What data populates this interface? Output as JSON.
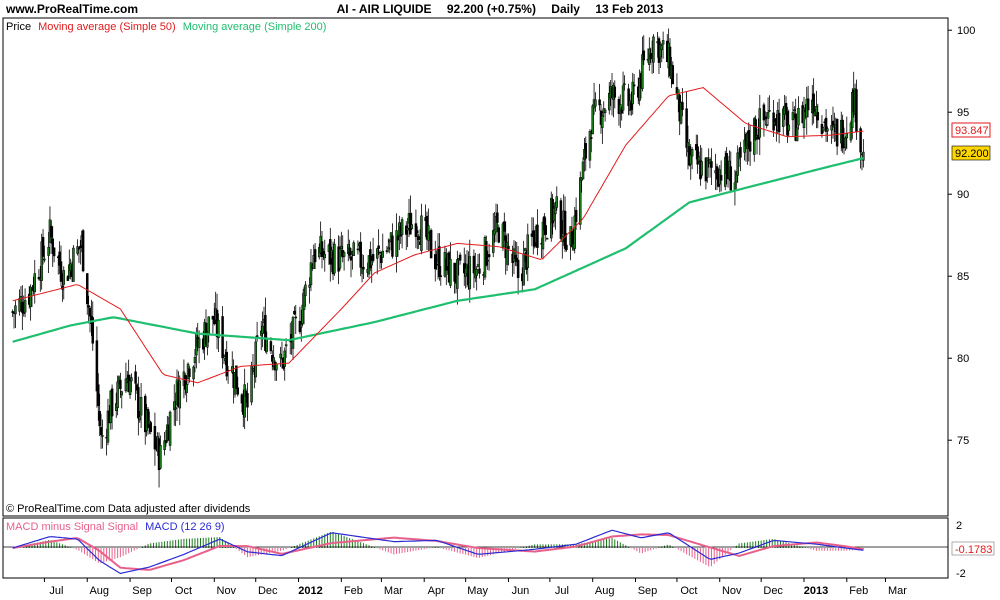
{
  "header": {
    "site": "www.ProRealTime.com",
    "instrument": "AI - AIR LIQUIDE",
    "quote": "92.200 (+0.75%)",
    "period": "Daily",
    "date": "13 Feb 2013"
  },
  "price_panel": {
    "legend_price": "Price",
    "legend_ma50": "Moving average (Simple 50)",
    "legend_ma200": "Moving average (Simple 200)",
    "footer": "© ProRealTime.com  Data adjusted after dividends",
    "last_price_label": "92.200",
    "ma50_label": "93.847"
  },
  "macd_panel": {
    "legend_hist": "MACD minus Signal Signal",
    "legend_macd": "MACD (12 26 9)",
    "value_label": "-0.1783",
    "tick_top": "2",
    "tick_bottom": "-2"
  },
  "colors": {
    "ma50": "#e31a1c",
    "ma200": "#1fbf6f",
    "candle_up": "#1a7a1a",
    "candle_down": "#000000",
    "macd": "#2b2bd6",
    "signal": "#e8608a",
    "last_price_bg": "#ffd700",
    "ma50_label_border": "#e31a1c"
  },
  "chart_data": {
    "type": "line",
    "x_labels": [
      "Jul",
      "Aug",
      "Sep",
      "Oct",
      "Nov",
      "Dec",
      "2012",
      "Feb",
      "Mar",
      "Apr",
      "May",
      "Jun",
      "Jul",
      "Aug",
      "Sep",
      "Oct",
      "Nov",
      "Dec",
      "2013",
      "Feb",
      "Mar"
    ],
    "y_ticks": [
      75,
      80,
      85,
      90,
      95,
      100
    ],
    "ylim": [
      70.5,
      100.5
    ],
    "price_anchors": [
      {
        "date": "2011-06-08",
        "close": 82.8
      },
      {
        "date": "2011-06-20",
        "close": 84.0
      },
      {
        "date": "2011-07-05",
        "close": 87.5
      },
      {
        "date": "2011-07-15",
        "close": 85.0
      },
      {
        "date": "2011-07-28",
        "close": 87.0
      },
      {
        "date": "2011-08-05",
        "close": 81.0
      },
      {
        "date": "2011-08-11",
        "close": 75.0
      },
      {
        "date": "2011-08-18",
        "close": 77.0
      },
      {
        "date": "2011-08-30",
        "close": 79.0
      },
      {
        "date": "2011-09-12",
        "close": 76.0
      },
      {
        "date": "2011-09-23",
        "close": 74.0
      },
      {
        "date": "2011-10-03",
        "close": 77.5
      },
      {
        "date": "2011-10-15",
        "close": 80.0
      },
      {
        "date": "2011-10-31",
        "close": 82.5
      },
      {
        "date": "2011-11-10",
        "close": 80.0
      },
      {
        "date": "2011-11-25",
        "close": 77.0
      },
      {
        "date": "2011-12-05",
        "close": 82.0
      },
      {
        "date": "2011-12-19",
        "close": 79.5
      },
      {
        "date": "2012-01-02",
        "close": 82.5
      },
      {
        "date": "2012-01-12",
        "close": 86.5
      },
      {
        "date": "2012-02-03",
        "close": 86.0
      },
      {
        "date": "2012-02-24",
        "close": 86.0
      },
      {
        "date": "2012-03-09",
        "close": 87.0
      },
      {
        "date": "2012-03-26",
        "close": 88.5
      },
      {
        "date": "2012-04-10",
        "close": 86.0
      },
      {
        "date": "2012-04-25",
        "close": 85.0
      },
      {
        "date": "2012-05-10",
        "close": 85.5
      },
      {
        "date": "2012-05-25",
        "close": 88.0
      },
      {
        "date": "2012-06-08",
        "close": 85.0
      },
      {
        "date": "2012-06-20",
        "close": 87.5
      },
      {
        "date": "2012-07-05",
        "close": 89.0
      },
      {
        "date": "2012-07-16",
        "close": 87.0
      },
      {
        "date": "2012-07-31",
        "close": 94.5
      },
      {
        "date": "2012-08-15",
        "close": 96.0
      },
      {
        "date": "2012-08-29",
        "close": 95.5
      },
      {
        "date": "2012-09-14",
        "close": 99.5
      },
      {
        "date": "2012-09-26",
        "close": 98.0
      },
      {
        "date": "2012-10-10",
        "close": 92.0
      },
      {
        "date": "2012-10-22",
        "close": 91.5
      },
      {
        "date": "2012-11-02",
        "close": 91.5
      },
      {
        "date": "2012-11-12",
        "close": 91.0
      },
      {
        "date": "2012-11-26",
        "close": 94.0
      },
      {
        "date": "2012-12-10",
        "close": 95.0
      },
      {
        "date": "2012-12-24",
        "close": 94.0
      },
      {
        "date": "2013-01-07",
        "close": 96.0
      },
      {
        "date": "2013-01-21",
        "close": 93.5
      },
      {
        "date": "2013-01-31",
        "close": 94.0
      },
      {
        "date": "2013-02-06",
        "close": 96.0
      },
      {
        "date": "2013-02-13",
        "close": 92.2
      }
    ],
    "ma50_anchors": [
      {
        "date": "2011-06-08",
        "value": 83.5
      },
      {
        "date": "2011-07-25",
        "value": 84.5
      },
      {
        "date": "2011-08-25",
        "value": 83.0
      },
      {
        "date": "2011-09-25",
        "value": 79.0
      },
      {
        "date": "2011-10-20",
        "value": 78.5
      },
      {
        "date": "2011-11-20",
        "value": 79.5
      },
      {
        "date": "2011-12-25",
        "value": 79.7
      },
      {
        "date": "2012-02-01",
        "value": 83.0
      },
      {
        "date": "2012-02-25",
        "value": 85.2
      },
      {
        "date": "2012-03-25",
        "value": 86.3
      },
      {
        "date": "2012-04-25",
        "value": 87.0
      },
      {
        "date": "2012-05-25",
        "value": 86.8
      },
      {
        "date": "2012-06-25",
        "value": 86.0
      },
      {
        "date": "2012-07-25",
        "value": 88.5
      },
      {
        "date": "2012-08-25",
        "value": 93.0
      },
      {
        "date": "2012-09-25",
        "value": 96.0
      },
      {
        "date": "2012-10-20",
        "value": 96.5
      },
      {
        "date": "2012-11-20",
        "value": 94.3
      },
      {
        "date": "2012-12-20",
        "value": 93.5
      },
      {
        "date": "2013-01-20",
        "value": 93.6
      },
      {
        "date": "2013-02-13",
        "value": 93.847
      }
    ],
    "ma200_anchors": [
      {
        "date": "2011-06-08",
        "value": 81.0
      },
      {
        "date": "2011-07-20",
        "value": 82.0
      },
      {
        "date": "2011-08-20",
        "value": 82.5
      },
      {
        "date": "2011-10-20",
        "value": 81.5
      },
      {
        "date": "2011-12-25",
        "value": 81.1
      },
      {
        "date": "2012-02-25",
        "value": 82.2
      },
      {
        "date": "2012-04-25",
        "value": 83.5
      },
      {
        "date": "2012-06-20",
        "value": 84.2
      },
      {
        "date": "2012-08-25",
        "value": 86.7
      },
      {
        "date": "2012-10-10",
        "value": 89.5
      },
      {
        "date": "2012-11-25",
        "value": 90.5
      },
      {
        "date": "2013-01-20",
        "value": 91.7
      },
      {
        "date": "2013-02-13",
        "value": 92.2
      }
    ],
    "macd": {
      "ticks": [
        2,
        -2
      ],
      "ylim": [
        -2.2,
        2.2
      ],
      "last_value": -0.1783,
      "anchors": [
        {
          "date": "2011-06-08",
          "value": 0.0
        },
        {
          "date": "2011-07-05",
          "value": 0.9
        },
        {
          "date": "2011-07-25",
          "value": 0.7
        },
        {
          "date": "2011-08-10",
          "value": -1.0
        },
        {
          "date": "2011-08-25",
          "value": -2.0
        },
        {
          "date": "2011-09-15",
          "value": -1.5
        },
        {
          "date": "2011-10-10",
          "value": -0.5
        },
        {
          "date": "2011-11-05",
          "value": 0.7
        },
        {
          "date": "2011-11-25",
          "value": -0.3
        },
        {
          "date": "2011-12-20",
          "value": -0.6
        },
        {
          "date": "2012-01-25",
          "value": 1.2
        },
        {
          "date": "2012-03-10",
          "value": 0.5
        },
        {
          "date": "2012-04-10",
          "value": 0.6
        },
        {
          "date": "2012-05-10",
          "value": -0.5
        },
        {
          "date": "2012-06-20",
          "value": -0.1
        },
        {
          "date": "2012-07-20",
          "value": 0.3
        },
        {
          "date": "2012-08-15",
          "value": 1.4
        },
        {
          "date": "2012-09-05",
          "value": 0.8
        },
        {
          "date": "2012-09-25",
          "value": 1.2
        },
        {
          "date": "2012-10-25",
          "value": -0.9
        },
        {
          "date": "2012-11-15",
          "value": -0.4
        },
        {
          "date": "2012-12-10",
          "value": 0.6
        },
        {
          "date": "2013-01-10",
          "value": 0.3
        },
        {
          "date": "2013-01-31",
          "value": 0.0
        },
        {
          "date": "2013-02-13",
          "value": -0.1783
        }
      ]
    }
  }
}
